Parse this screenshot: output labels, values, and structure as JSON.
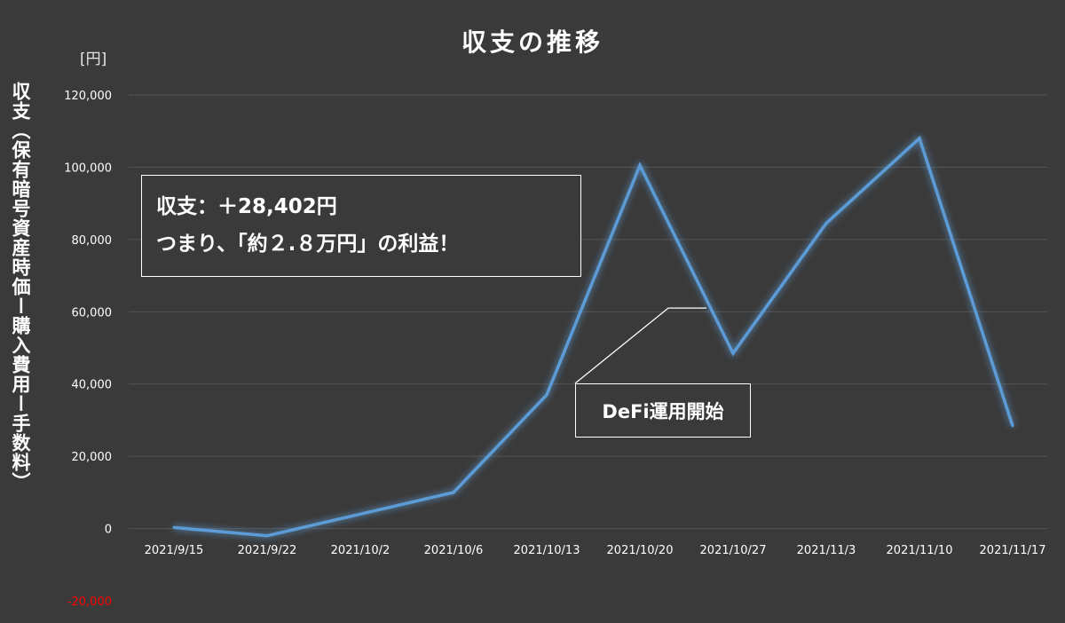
{
  "chart_data": {
    "type": "line",
    "title": "収支の推移",
    "ylabel": "収支（保有暗号資産時価ー購入費用ー手数料）",
    "yunit": "[円]",
    "categories": [
      "2021/9/15",
      "2021/9/22",
      "2021/10/2",
      "2021/10/6",
      "2021/10/13",
      "2021/10/20",
      "2021/10/27",
      "2021/11/3",
      "2021/11/10",
      "2021/11/17"
    ],
    "series": [
      {
        "values": [
          300,
          -2000,
          4000,
          10000,
          37000,
          100500,
          48500,
          84500,
          108000,
          28402
        ],
        "color": "#5b9bd5"
      }
    ],
    "ylim": [
      -20000,
      120000
    ],
    "yticks": [
      {
        "value": -20000,
        "label": "-20,000",
        "color": "#ff0000"
      },
      {
        "value": 0,
        "label": "0",
        "color": "#ffffff"
      },
      {
        "value": 20000,
        "label": "20,000",
        "color": "#ffffff"
      },
      {
        "value": 40000,
        "label": "40,000",
        "color": "#ffffff"
      },
      {
        "value": 60000,
        "label": "60,000",
        "color": "#ffffff"
      },
      {
        "value": 80000,
        "label": "80,000",
        "color": "#ffffff"
      },
      {
        "value": 100000,
        "label": "100,000",
        "color": "#ffffff"
      },
      {
        "value": 120000,
        "label": "120,000",
        "color": "#ffffff"
      }
    ],
    "grid": true,
    "annotations": [
      {
        "text": "DeFi運用開始",
        "category": "2021/10/27"
      }
    ],
    "summary": {
      "line1": "収支：＋28,402円",
      "line2": "つまり、「約２.８万円」の利益！"
    }
  },
  "colors": {
    "background": "#3a3a3a",
    "grid": "#555555",
    "line": "#5b9bd5",
    "negative_tick": "#ff0000"
  }
}
